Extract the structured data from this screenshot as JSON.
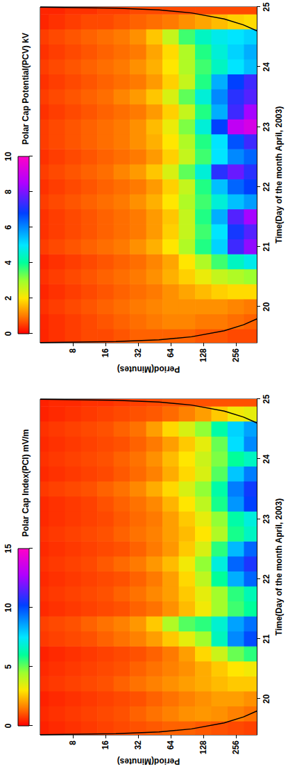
{
  "chart_data": [
    {
      "type": "heatmap",
      "title": "Polar Cap Index(PCI) mV/m",
      "x_label": "Time(Day of the month April, 2003)",
      "y_label": "Period(Minutes)",
      "x": [
        19.5,
        19.75,
        20,
        20.25,
        20.5,
        20.75,
        21,
        21.25,
        21.5,
        21.75,
        22,
        22.25,
        22.5,
        22.75,
        23,
        23.25,
        23.5,
        23.75,
        24,
        24.25,
        24.5,
        24.75,
        25
      ],
      "y": [
        4,
        5.7,
        8,
        11.3,
        16,
        22.6,
        32,
        45.3,
        64,
        90.5,
        128,
        181,
        256,
        362
      ],
      "values": [
        [
          0.4,
          0.5,
          0.4,
          0.6,
          0.5,
          0.4,
          0.7,
          0.8,
          0.5,
          0.6,
          0.5,
          0.6,
          0.5,
          0.6,
          0.5,
          0.5,
          0.7,
          0.5,
          0.6,
          0.5,
          0.6,
          0.4,
          0.4
        ],
        [
          0.5,
          0.6,
          0.5,
          0.7,
          0.6,
          0.5,
          0.8,
          0.9,
          0.6,
          0.7,
          0.6,
          0.7,
          0.6,
          0.7,
          0.6,
          0.6,
          0.8,
          0.6,
          0.7,
          0.6,
          0.7,
          0.5,
          0.5
        ],
        [
          0.6,
          0.7,
          0.6,
          0.8,
          0.7,
          0.6,
          0.9,
          1.0,
          0.7,
          0.8,
          0.7,
          0.8,
          0.7,
          0.8,
          0.7,
          0.7,
          0.9,
          0.7,
          0.8,
          0.7,
          0.8,
          0.6,
          0.5
        ],
        [
          0.7,
          0.8,
          0.7,
          0.9,
          0.8,
          0.7,
          1.0,
          1.2,
          0.8,
          0.9,
          0.8,
          0.9,
          0.8,
          0.9,
          0.8,
          0.8,
          1.0,
          0.8,
          0.9,
          0.8,
          0.9,
          0.7,
          0.6
        ],
        [
          0.8,
          0.9,
          0.8,
          1.0,
          0.9,
          0.8,
          1.2,
          1.4,
          0.9,
          1.0,
          0.9,
          1.1,
          0.9,
          1.0,
          0.9,
          1.0,
          1.2,
          0.9,
          1.0,
          0.9,
          1.0,
          0.8,
          0.6
        ],
        [
          0.9,
          1.0,
          0.9,
          1.2,
          1.0,
          0.9,
          1.4,
          1.6,
          1.0,
          1.2,
          1.0,
          1.3,
          1.0,
          1.2,
          1.1,
          1.2,
          1.4,
          1.1,
          1.2,
          1.0,
          1.2,
          0.9,
          0.7
        ],
        [
          1.0,
          1.2,
          1.0,
          1.4,
          1.2,
          1.0,
          1.6,
          1.9,
          1.2,
          1.4,
          1.2,
          1.5,
          1.2,
          1.4,
          1.3,
          1.4,
          1.7,
          1.3,
          1.4,
          1.2,
          1.4,
          1.0,
          0.8
        ],
        [
          1.1,
          1.4,
          1.2,
          1.6,
          1.4,
          1.2,
          2.0,
          2.6,
          1.4,
          1.7,
          1.5,
          1.9,
          1.5,
          1.6,
          1.5,
          1.7,
          2.2,
          1.6,
          1.8,
          1.5,
          2.0,
          1.1,
          0.9
        ],
        [
          1.2,
          1.6,
          1.4,
          1.8,
          1.6,
          1.5,
          2.6,
          4.2,
          1.8,
          2.0,
          2.0,
          2.4,
          1.9,
          2.0,
          2.0,
          2.3,
          2.8,
          2.2,
          2.4,
          2.0,
          2.8,
          1.3,
          1.0
        ],
        [
          1.2,
          1.8,
          1.6,
          2.0,
          1.8,
          2.0,
          3.4,
          5.2,
          2.4,
          2.6,
          2.8,
          3.2,
          2.6,
          2.4,
          2.6,
          3.0,
          3.6,
          2.8,
          3.0,
          2.6,
          3.6,
          1.6,
          1.0
        ],
        [
          1.1,
          1.9,
          1.8,
          2.2,
          2.2,
          2.8,
          4.4,
          5.6,
          3.2,
          3.4,
          4.0,
          4.6,
          3.6,
          3.0,
          3.4,
          4.0,
          4.6,
          3.6,
          3.8,
          3.4,
          4.6,
          2.0,
          1.0
        ],
        [
          1.0,
          1.8,
          2.0,
          2.4,
          2.6,
          3.8,
          6.5,
          6.8,
          4.4,
          4.4,
          6.0,
          7.0,
          5.6,
          4.2,
          4.6,
          5.8,
          6.2,
          5.2,
          4.8,
          5.0,
          6.2,
          2.6,
          1.0
        ],
        [
          0.9,
          1.6,
          2.0,
          2.6,
          3.0,
          5.0,
          9.0,
          8.6,
          5.4,
          5.6,
          8.4,
          9.6,
          8.2,
          5.8,
          6.2,
          8.8,
          9.2,
          8.0,
          6.0,
          7.6,
          7.8,
          3.2,
          1.0
        ],
        [
          0.8,
          1.4,
          1.8,
          2.6,
          3.2,
          5.6,
          10.0,
          9.4,
          6.0,
          6.4,
          9.6,
          10.6,
          9.6,
          6.6,
          7.0,
          10.2,
          10.4,
          9.2,
          6.6,
          9.0,
          8.6,
          3.4,
          1.0
        ]
      ],
      "xlim": [
        19.4,
        25
      ],
      "xticks": [
        20,
        21,
        22,
        23,
        24,
        25
      ],
      "ylim": [
        4,
        400
      ],
      "yticks": [
        8,
        16,
        32,
        64,
        128,
        256
      ],
      "log": "y",
      "colorbar": {
        "range": [
          0,
          15
        ],
        "ticks": [
          0,
          5,
          10,
          15
        ]
      },
      "coi": {
        "x": [
          19.404,
          19.42,
          19.45,
          19.5,
          19.6,
          19.7,
          19.8,
          22.2,
          24.6,
          24.7,
          24.8,
          24.9,
          24.95,
          24.98,
          24.996
        ],
        "period": [
          4,
          20,
          50,
          100,
          200,
          302,
          403,
          null,
          403,
          302,
          200,
          100,
          50,
          20,
          4
        ]
      }
    },
    {
      "type": "heatmap",
      "title": "Polar Cap Potential(PCV) kV",
      "x_label": "Time(Day of the month April, 2003)",
      "y_label": "Period(Minutes)",
      "x": [
        19.5,
        19.75,
        20,
        20.25,
        20.5,
        20.75,
        21,
        21.25,
        21.5,
        21.75,
        22,
        22.25,
        22.5,
        22.75,
        23,
        23.25,
        23.5,
        23.75,
        24,
        24.25,
        24.5,
        24.75,
        25
      ],
      "y": [
        4,
        5.7,
        8,
        11.3,
        16,
        22.6,
        32,
        45.3,
        64,
        90.5,
        128,
        181,
        256,
        362
      ],
      "values": [
        [
          0.3,
          0.3,
          0.4,
          0.3,
          0.4,
          0.3,
          0.5,
          0.4,
          0.4,
          0.5,
          0.4,
          0.5,
          0.4,
          0.5,
          0.5,
          0.4,
          0.5,
          0.4,
          0.5,
          0.4,
          0.5,
          0.3,
          0.3
        ],
        [
          0.4,
          0.4,
          0.5,
          0.4,
          0.5,
          0.4,
          0.6,
          0.5,
          0.5,
          0.6,
          0.5,
          0.6,
          0.5,
          0.6,
          0.6,
          0.5,
          0.6,
          0.5,
          0.6,
          0.5,
          0.6,
          0.4,
          0.3
        ],
        [
          0.5,
          0.5,
          0.6,
          0.5,
          0.6,
          0.5,
          0.7,
          0.6,
          0.6,
          0.7,
          0.6,
          0.7,
          0.6,
          0.7,
          0.7,
          0.6,
          0.7,
          0.6,
          0.7,
          0.6,
          0.7,
          0.5,
          0.4
        ],
        [
          0.6,
          0.6,
          0.7,
          0.6,
          0.7,
          0.6,
          0.8,
          0.7,
          0.7,
          0.8,
          0.7,
          0.8,
          0.7,
          0.8,
          0.8,
          0.7,
          0.8,
          0.7,
          0.8,
          0.7,
          0.8,
          0.6,
          0.4
        ],
        [
          0.6,
          0.7,
          0.8,
          0.7,
          0.8,
          0.7,
          0.9,
          0.8,
          0.8,
          0.9,
          0.8,
          0.9,
          0.8,
          0.9,
          0.9,
          0.8,
          0.9,
          0.8,
          0.9,
          0.8,
          0.9,
          0.6,
          0.5
        ],
        [
          0.7,
          0.8,
          0.9,
          0.8,
          0.9,
          0.8,
          1.0,
          0.9,
          0.9,
          1.0,
          0.9,
          1.1,
          0.9,
          1.0,
          1.0,
          0.9,
          1.1,
          0.9,
          1.0,
          0.9,
          1.0,
          0.7,
          0.5
        ],
        [
          0.8,
          0.9,
          1.0,
          0.9,
          1.0,
          0.9,
          1.2,
          1.0,
          1.0,
          1.2,
          1.0,
          1.3,
          1.0,
          1.2,
          1.2,
          1.0,
          1.3,
          1.0,
          1.2,
          1.0,
          1.2,
          0.8,
          0.6
        ],
        [
          0.8,
          1.0,
          1.1,
          1.0,
          1.2,
          1.1,
          1.5,
          1.3,
          1.3,
          1.5,
          1.3,
          1.7,
          1.3,
          1.5,
          1.6,
          1.3,
          1.7,
          1.3,
          1.5,
          1.4,
          1.7,
          0.9,
          0.6
        ],
        [
          0.8,
          1.1,
          1.2,
          1.2,
          1.5,
          1.4,
          2.0,
          1.8,
          1.7,
          2.0,
          1.8,
          2.4,
          1.8,
          2.0,
          2.2,
          1.8,
          2.4,
          1.8,
          2.0,
          1.9,
          2.6,
          1.0,
          0.6
        ],
        [
          0.8,
          1.1,
          1.2,
          1.4,
          1.8,
          2.0,
          2.8,
          2.6,
          2.6,
          2.8,
          2.6,
          3.4,
          2.6,
          2.8,
          3.2,
          2.6,
          3.4,
          2.6,
          2.8,
          2.8,
          3.6,
          1.2,
          0.6
        ],
        [
          0.7,
          1.0,
          1.2,
          1.6,
          2.2,
          2.8,
          3.8,
          3.6,
          3.8,
          3.6,
          3.8,
          4.6,
          3.6,
          3.8,
          4.6,
          3.8,
          4.6,
          3.8,
          3.6,
          3.8,
          4.4,
          1.4,
          0.6
        ],
        [
          0.7,
          1.0,
          1.2,
          1.8,
          2.6,
          3.6,
          5.2,
          5.0,
          5.6,
          4.6,
          5.4,
          7.2,
          5.0,
          5.0,
          6.8,
          5.6,
          6.0,
          5.6,
          4.4,
          4.6,
          4.8,
          1.6,
          0.6
        ],
        [
          0.6,
          0.9,
          1.1,
          1.9,
          2.8,
          4.4,
          7.4,
          7.0,
          7.6,
          5.4,
          6.4,
          7.8,
          6.0,
          6.6,
          8.8,
          7.4,
          7.2,
          6.8,
          5.0,
          5.2,
          5.0,
          1.8,
          0.6
        ],
        [
          0.6,
          0.8,
          1.0,
          1.9,
          3.0,
          4.8,
          8.2,
          7.6,
          8.4,
          5.8,
          6.8,
          7.2,
          6.4,
          7.4,
          9.2,
          8.4,
          7.6,
          7.4,
          5.4,
          5.6,
          5.2,
          1.9,
          0.6
        ]
      ],
      "xlim": [
        19.4,
        25
      ],
      "xticks": [
        20,
        21,
        22,
        23,
        24,
        25
      ],
      "ylim": [
        4,
        400
      ],
      "yticks": [
        8,
        16,
        32,
        64,
        128,
        256
      ],
      "log": "y",
      "colorbar": {
        "range": [
          0,
          10
        ],
        "ticks": [
          0,
          2,
          4,
          6,
          8,
          10
        ]
      },
      "coi": {
        "x": [
          19.404,
          19.42,
          19.45,
          19.5,
          19.6,
          19.7,
          19.8,
          22.2,
          24.6,
          24.7,
          24.8,
          24.9,
          24.95,
          24.98,
          24.996
        ],
        "period": [
          4,
          20,
          50,
          100,
          200,
          302,
          403,
          null,
          403,
          302,
          200,
          100,
          50,
          20,
          4
        ]
      }
    }
  ]
}
